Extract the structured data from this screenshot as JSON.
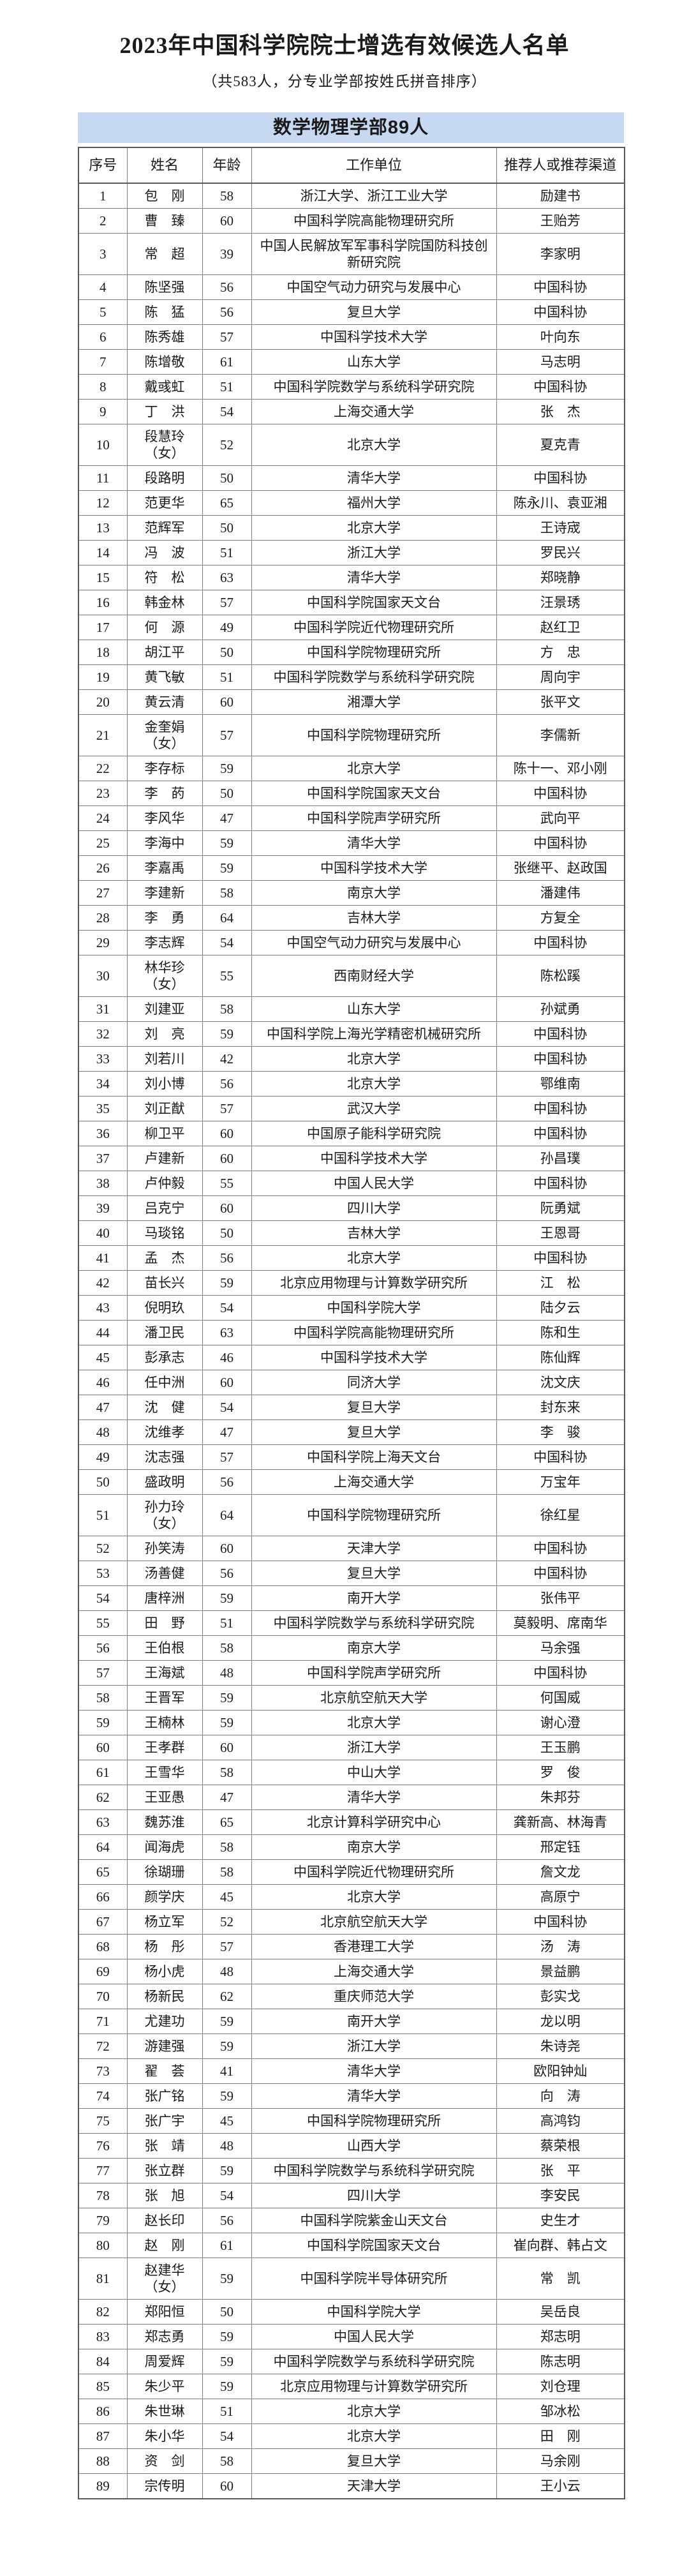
{
  "page": {
    "title": "2023年中国科学院院士增选有效候选人名单",
    "subtitle": "（共583人，分专业学部按姓氏拼音排序）",
    "section_title": "数学物理学部89人",
    "section_bg_color": "#c6d9f0",
    "border_color": "#7f7f7f",
    "text_color": "#1a1a1a"
  },
  "table": {
    "headers": [
      "序号",
      "姓名",
      "年龄",
      "工作单位",
      "推荐人或推荐渠道"
    ],
    "rows": [
      {
        "no": "1",
        "name": "包　刚",
        "note": "",
        "age": "58",
        "unit": "浙江大学、浙江工业大学",
        "rec": "励建书"
      },
      {
        "no": "2",
        "name": "曹　臻",
        "note": "",
        "age": "60",
        "unit": "中国科学院高能物理研究所",
        "rec": "王贻芳"
      },
      {
        "no": "3",
        "name": "常　超",
        "note": "",
        "age": "39",
        "unit": "中国人民解放军军事科学院国防科技创新研究院",
        "rec": "李家明"
      },
      {
        "no": "4",
        "name": "陈坚强",
        "note": "",
        "age": "56",
        "unit": "中国空气动力研究与发展中心",
        "rec": "中国科协"
      },
      {
        "no": "5",
        "name": "陈　猛",
        "note": "",
        "age": "56",
        "unit": "复旦大学",
        "rec": "中国科协"
      },
      {
        "no": "6",
        "name": "陈秀雄",
        "note": "",
        "age": "57",
        "unit": "中国科学技术大学",
        "rec": "叶向东"
      },
      {
        "no": "7",
        "name": "陈增敬",
        "note": "",
        "age": "61",
        "unit": "山东大学",
        "rec": "马志明"
      },
      {
        "no": "8",
        "name": "戴彧虹",
        "note": "",
        "age": "51",
        "unit": "中国科学院数学与系统科学研究院",
        "rec": "中国科协"
      },
      {
        "no": "9",
        "name": "丁　洪",
        "note": "",
        "age": "54",
        "unit": "上海交通大学",
        "rec": "张　杰"
      },
      {
        "no": "10",
        "name": "段慧玲",
        "note": "（女）",
        "age": "52",
        "unit": "北京大学",
        "rec": "夏克青"
      },
      {
        "no": "11",
        "name": "段路明",
        "note": "",
        "age": "50",
        "unit": "清华大学",
        "rec": "中国科协"
      },
      {
        "no": "12",
        "name": "范更华",
        "note": "",
        "age": "65",
        "unit": "福州大学",
        "rec": "陈永川、袁亚湘"
      },
      {
        "no": "13",
        "name": "范辉军",
        "note": "",
        "age": "50",
        "unit": "北京大学",
        "rec": "王诗宬"
      },
      {
        "no": "14",
        "name": "冯　波",
        "note": "",
        "age": "51",
        "unit": "浙江大学",
        "rec": "罗民兴"
      },
      {
        "no": "15",
        "name": "符　松",
        "note": "",
        "age": "63",
        "unit": "清华大学",
        "rec": "郑晓静"
      },
      {
        "no": "16",
        "name": "韩金林",
        "note": "",
        "age": "57",
        "unit": "中国科学院国家天文台",
        "rec": "汪景琇"
      },
      {
        "no": "17",
        "name": "何　源",
        "note": "",
        "age": "49",
        "unit": "中国科学院近代物理研究所",
        "rec": "赵红卫"
      },
      {
        "no": "18",
        "name": "胡江平",
        "note": "",
        "age": "50",
        "unit": "中国科学院物理研究所",
        "rec": "方　忠"
      },
      {
        "no": "19",
        "name": "黄飞敏",
        "note": "",
        "age": "51",
        "unit": "中国科学院数学与系统科学研究院",
        "rec": "周向宇"
      },
      {
        "no": "20",
        "name": "黄云清",
        "note": "",
        "age": "60",
        "unit": "湘潭大学",
        "rec": "张平文"
      },
      {
        "no": "21",
        "name": "金奎娟",
        "note": "（女）",
        "age": "57",
        "unit": "中国科学院物理研究所",
        "rec": "李儒新"
      },
      {
        "no": "22",
        "name": "李存标",
        "note": "",
        "age": "59",
        "unit": "北京大学",
        "rec": "陈十一、邓小刚"
      },
      {
        "no": "23",
        "name": "李　菂",
        "note": "",
        "age": "50",
        "unit": "中国科学院国家天文台",
        "rec": "中国科协"
      },
      {
        "no": "24",
        "name": "李风华",
        "note": "",
        "age": "47",
        "unit": "中国科学院声学研究所",
        "rec": "武向平"
      },
      {
        "no": "25",
        "name": "李海中",
        "note": "",
        "age": "59",
        "unit": "清华大学",
        "rec": "中国科协"
      },
      {
        "no": "26",
        "name": "李嘉禹",
        "note": "",
        "age": "59",
        "unit": "中国科学技术大学",
        "rec": "张继平、赵政国"
      },
      {
        "no": "27",
        "name": "李建新",
        "note": "",
        "age": "58",
        "unit": "南京大学",
        "rec": "潘建伟"
      },
      {
        "no": "28",
        "name": "李　勇",
        "note": "",
        "age": "64",
        "unit": "吉林大学",
        "rec": "方复全"
      },
      {
        "no": "29",
        "name": "李志辉",
        "note": "",
        "age": "54",
        "unit": "中国空气动力研究与发展中心",
        "rec": "中国科协"
      },
      {
        "no": "30",
        "name": "林华珍",
        "note": "（女）",
        "age": "55",
        "unit": "西南财经大学",
        "rec": "陈松蹊"
      },
      {
        "no": "31",
        "name": "刘建亚",
        "note": "",
        "age": "58",
        "unit": "山东大学",
        "rec": "孙斌勇"
      },
      {
        "no": "32",
        "name": "刘　亮",
        "note": "",
        "age": "59",
        "unit": "中国科学院上海光学精密机械研究所",
        "rec": "中国科协"
      },
      {
        "no": "33",
        "name": "刘若川",
        "note": "",
        "age": "42",
        "unit": "北京大学",
        "rec": "中国科协"
      },
      {
        "no": "34",
        "name": "刘小博",
        "note": "",
        "age": "56",
        "unit": "北京大学",
        "rec": "鄂维南"
      },
      {
        "no": "35",
        "name": "刘正猷",
        "note": "",
        "age": "57",
        "unit": "武汉大学",
        "rec": "中国科协"
      },
      {
        "no": "36",
        "name": "柳卫平",
        "note": "",
        "age": "60",
        "unit": "中国原子能科学研究院",
        "rec": "中国科协"
      },
      {
        "no": "37",
        "name": "卢建新",
        "note": "",
        "age": "60",
        "unit": "中国科学技术大学",
        "rec": "孙昌璞"
      },
      {
        "no": "38",
        "name": "卢仲毅",
        "note": "",
        "age": "55",
        "unit": "中国人民大学",
        "rec": "中国科协"
      },
      {
        "no": "39",
        "name": "吕克宁",
        "note": "",
        "age": "60",
        "unit": "四川大学",
        "rec": "阮勇斌"
      },
      {
        "no": "40",
        "name": "马琰铭",
        "note": "",
        "age": "50",
        "unit": "吉林大学",
        "rec": "王恩哥"
      },
      {
        "no": "41",
        "name": "孟　杰",
        "note": "",
        "age": "56",
        "unit": "北京大学",
        "rec": "中国科协"
      },
      {
        "no": "42",
        "name": "苗长兴",
        "note": "",
        "age": "59",
        "unit": "北京应用物理与计算数学研究所",
        "rec": "江　松"
      },
      {
        "no": "43",
        "name": "倪明玖",
        "note": "",
        "age": "54",
        "unit": "中国科学院大学",
        "rec": "陆夕云"
      },
      {
        "no": "44",
        "name": "潘卫民",
        "note": "",
        "age": "63",
        "unit": "中国科学院高能物理研究所",
        "rec": "陈和生"
      },
      {
        "no": "45",
        "name": "彭承志",
        "note": "",
        "age": "46",
        "unit": "中国科学技术大学",
        "rec": "陈仙辉"
      },
      {
        "no": "46",
        "name": "任中洲",
        "note": "",
        "age": "60",
        "unit": "同济大学",
        "rec": "沈文庆"
      },
      {
        "no": "47",
        "name": "沈　健",
        "note": "",
        "age": "54",
        "unit": "复旦大学",
        "rec": "封东来"
      },
      {
        "no": "48",
        "name": "沈维孝",
        "note": "",
        "age": "47",
        "unit": "复旦大学",
        "rec": "李　骏"
      },
      {
        "no": "49",
        "name": "沈志强",
        "note": "",
        "age": "57",
        "unit": "中国科学院上海天文台",
        "rec": "中国科协"
      },
      {
        "no": "50",
        "name": "盛政明",
        "note": "",
        "age": "56",
        "unit": "上海交通大学",
        "rec": "万宝年"
      },
      {
        "no": "51",
        "name": "孙力玲",
        "note": "（女）",
        "age": "64",
        "unit": "中国科学院物理研究所",
        "rec": "徐红星"
      },
      {
        "no": "52",
        "name": "孙笑涛",
        "note": "",
        "age": "60",
        "unit": "天津大学",
        "rec": "中国科协"
      },
      {
        "no": "53",
        "name": "汤善健",
        "note": "",
        "age": "56",
        "unit": "复旦大学",
        "rec": "中国科协"
      },
      {
        "no": "54",
        "name": "唐梓洲",
        "note": "",
        "age": "59",
        "unit": "南开大学",
        "rec": "张伟平"
      },
      {
        "no": "55",
        "name": "田　野",
        "note": "",
        "age": "51",
        "unit": "中国科学院数学与系统科学研究院",
        "rec": "莫毅明、席南华"
      },
      {
        "no": "56",
        "name": "王伯根",
        "note": "",
        "age": "58",
        "unit": "南京大学",
        "rec": "马余强"
      },
      {
        "no": "57",
        "name": "王海斌",
        "note": "",
        "age": "48",
        "unit": "中国科学院声学研究所",
        "rec": "中国科协"
      },
      {
        "no": "58",
        "name": "王晋军",
        "note": "",
        "age": "59",
        "unit": "北京航空航天大学",
        "rec": "何国威"
      },
      {
        "no": "59",
        "name": "王楠林",
        "note": "",
        "age": "59",
        "unit": "北京大学",
        "rec": "谢心澄"
      },
      {
        "no": "60",
        "name": "王孝群",
        "note": "",
        "age": "60",
        "unit": "浙江大学",
        "rec": "王玉鹏"
      },
      {
        "no": "61",
        "name": "王雪华",
        "note": "",
        "age": "58",
        "unit": "中山大学",
        "rec": "罗　俊"
      },
      {
        "no": "62",
        "name": "王亚愚",
        "note": "",
        "age": "47",
        "unit": "清华大学",
        "rec": "朱邦芬"
      },
      {
        "no": "63",
        "name": "魏苏淮",
        "note": "",
        "age": "65",
        "unit": "北京计算科学研究中心",
        "rec": "龚新高、林海青"
      },
      {
        "no": "64",
        "name": "闻海虎",
        "note": "",
        "age": "58",
        "unit": "南京大学",
        "rec": "邢定钰"
      },
      {
        "no": "65",
        "name": "徐瑚珊",
        "note": "",
        "age": "58",
        "unit": "中国科学院近代物理研究所",
        "rec": "詹文龙"
      },
      {
        "no": "66",
        "name": "颜学庆",
        "note": "",
        "age": "45",
        "unit": "北京大学",
        "rec": "高原宁"
      },
      {
        "no": "67",
        "name": "杨立军",
        "note": "",
        "age": "52",
        "unit": "北京航空航天大学",
        "rec": "中国科协"
      },
      {
        "no": "68",
        "name": "杨　彤",
        "note": "",
        "age": "57",
        "unit": "香港理工大学",
        "rec": "汤　涛"
      },
      {
        "no": "69",
        "name": "杨小虎",
        "note": "",
        "age": "48",
        "unit": "上海交通大学",
        "rec": "景益鹏"
      },
      {
        "no": "70",
        "name": "杨新民",
        "note": "",
        "age": "62",
        "unit": "重庆师范大学",
        "rec": "彭实戈"
      },
      {
        "no": "71",
        "name": "尤建功",
        "note": "",
        "age": "59",
        "unit": "南开大学",
        "rec": "龙以明"
      },
      {
        "no": "72",
        "name": "游建强",
        "note": "",
        "age": "59",
        "unit": "浙江大学",
        "rec": "朱诗尧"
      },
      {
        "no": "73",
        "name": "翟　荟",
        "note": "",
        "age": "41",
        "unit": "清华大学",
        "rec": "欧阳钟灿"
      },
      {
        "no": "74",
        "name": "张广铭",
        "note": "",
        "age": "59",
        "unit": "清华大学",
        "rec": "向　涛"
      },
      {
        "no": "75",
        "name": "张广宇",
        "note": "",
        "age": "45",
        "unit": "中国科学院物理研究所",
        "rec": "高鸿钧"
      },
      {
        "no": "76",
        "name": "张　靖",
        "note": "",
        "age": "48",
        "unit": "山西大学",
        "rec": "蔡荣根"
      },
      {
        "no": "77",
        "name": "张立群",
        "note": "",
        "age": "59",
        "unit": "中国科学院数学与系统科学研究院",
        "rec": "张　平"
      },
      {
        "no": "78",
        "name": "张　旭",
        "note": "",
        "age": "54",
        "unit": "四川大学",
        "rec": "李安民"
      },
      {
        "no": "79",
        "name": "赵长印",
        "note": "",
        "age": "56",
        "unit": "中国科学院紫金山天文台",
        "rec": "史生才"
      },
      {
        "no": "80",
        "name": "赵　刚",
        "note": "",
        "age": "61",
        "unit": "中国科学院国家天文台",
        "rec": "崔向群、韩占文"
      },
      {
        "no": "81",
        "name": "赵建华",
        "note": "（女）",
        "age": "59",
        "unit": "中国科学院半导体研究所",
        "rec": "常　凯"
      },
      {
        "no": "82",
        "name": "郑阳恒",
        "note": "",
        "age": "50",
        "unit": "中国科学院大学",
        "rec": "吴岳良"
      },
      {
        "no": "83",
        "name": "郑志勇",
        "note": "",
        "age": "59",
        "unit": "中国人民大学",
        "rec": "郑志明"
      },
      {
        "no": "84",
        "name": "周爱辉",
        "note": "",
        "age": "59",
        "unit": "中国科学院数学与系统科学研究院",
        "rec": "陈志明"
      },
      {
        "no": "85",
        "name": "朱少平",
        "note": "",
        "age": "59",
        "unit": "北京应用物理与计算数学研究所",
        "rec": "刘仓理"
      },
      {
        "no": "86",
        "name": "朱世琳",
        "note": "",
        "age": "51",
        "unit": "北京大学",
        "rec": "邹冰松"
      },
      {
        "no": "87",
        "name": "朱小华",
        "note": "",
        "age": "54",
        "unit": "北京大学",
        "rec": "田　刚"
      },
      {
        "no": "88",
        "name": "资　剑",
        "note": "",
        "age": "58",
        "unit": "复旦大学",
        "rec": "马余刚"
      },
      {
        "no": "89",
        "name": "宗传明",
        "note": "",
        "age": "60",
        "unit": "天津大学",
        "rec": "王小云"
      }
    ]
  }
}
